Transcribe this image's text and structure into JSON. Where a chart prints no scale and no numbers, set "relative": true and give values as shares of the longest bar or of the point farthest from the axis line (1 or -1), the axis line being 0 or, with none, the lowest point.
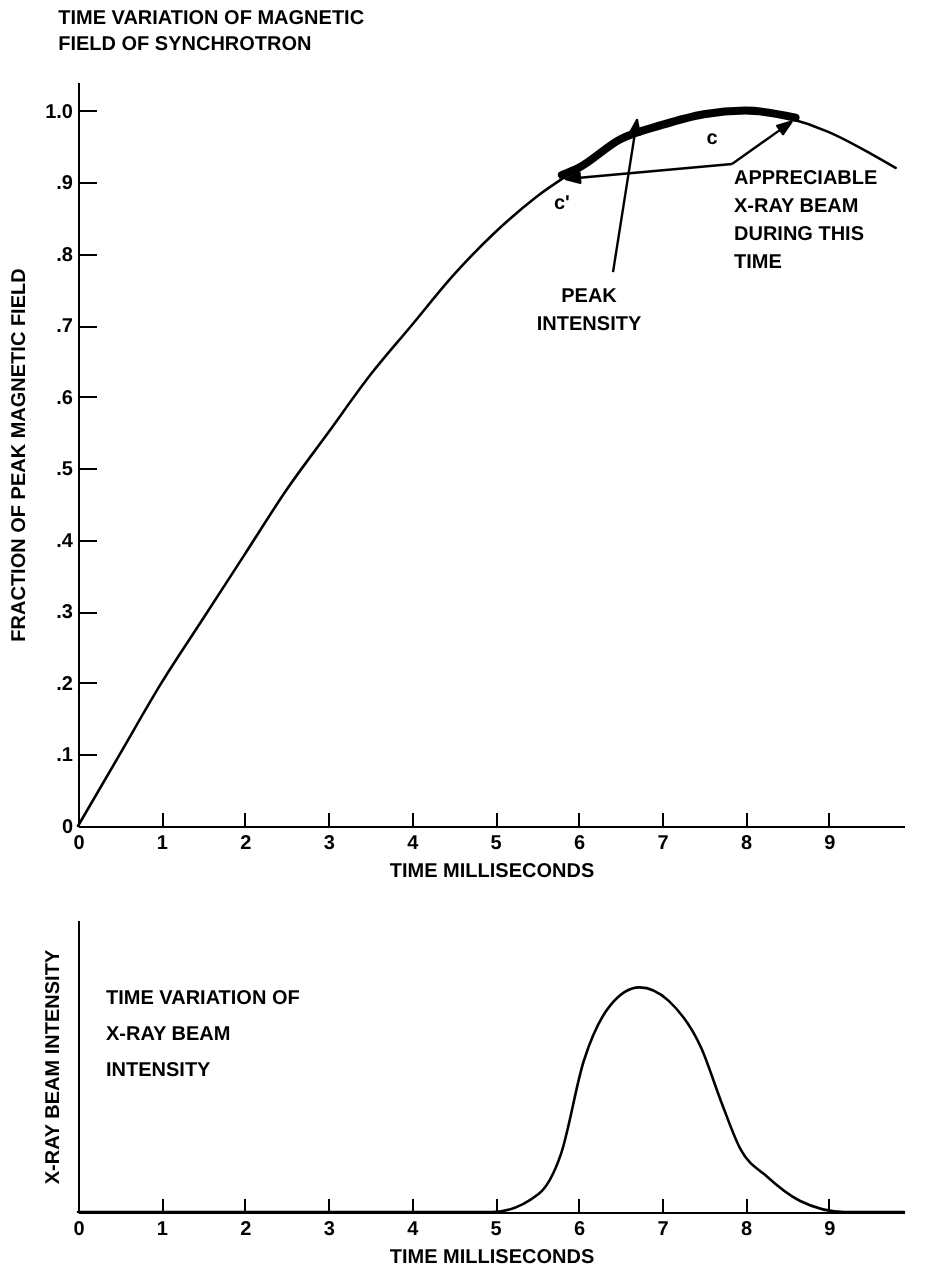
{
  "chart_data": [
    {
      "type": "line",
      "title": "TIME VARIATION OF MAGNETIC FIELD OF SYNCHROTRON",
      "xlabel": "TIME MILLISECONDS",
      "ylabel": "FRACTION OF PEAK MAGNETIC FIELD",
      "x": [
        0,
        0.5,
        1,
        1.5,
        2,
        2.5,
        3,
        3.5,
        4,
        4.5,
        5,
        5.5,
        6,
        6.5,
        7,
        7.5,
        8,
        8.5,
        9,
        9.5,
        9.8
      ],
      "series": [
        {
          "color": "#000000",
          "values": [
            0,
            0.1,
            0.2,
            0.29,
            0.38,
            0.47,
            0.55,
            0.63,
            0.7,
            0.77,
            0.83,
            0.88,
            0.92,
            0.96,
            0.98,
            0.995,
            1.0,
            0.99,
            0.97,
            0.94,
            0.92
          ]
        },
        {
          "color": "#000000",
          "x": [
            5.8,
            6,
            6.5,
            7,
            7.5,
            8,
            8.6
          ],
          "values": [
            0.91,
            0.92,
            0.96,
            0.98,
            0.995,
            1.0,
            0.99
          ]
        }
      ],
      "xlim": [
        0,
        9.9
      ],
      "xticks": [
        0,
        1,
        2,
        3,
        4,
        5,
        6,
        7,
        8,
        9
      ],
      "ylim": [
        0,
        1.04
      ],
      "yticks": [
        0,
        {
          "value": 0.1,
          "label": ".1"
        },
        {
          "value": 0.2,
          "label": ".2"
        },
        {
          "value": 0.3,
          "label": ".3"
        },
        {
          "value": 0.4,
          "label": ".4"
        },
        {
          "value": 0.5,
          "label": ".5"
        },
        {
          "value": 0.6,
          "label": ".6"
        },
        {
          "value": 0.7,
          "label": ".7"
        },
        {
          "value": 0.8,
          "label": ".8"
        },
        {
          "value": 0.9,
          "label": ".9"
        },
        {
          "value": 1,
          "label": "1.0"
        }
      ],
      "annotations": [
        {
          "text": "c'",
          "x": 5.8,
          "y": 0.91
        },
        {
          "text": "c",
          "x": 7.6,
          "y": 0.995
        },
        {
          "text": "PEAK INTENSITY",
          "x": 6.7,
          "y": 0.97
        },
        "APPRECIABLE X-RAY BEAM DURING THIS TIME"
      ]
    },
    {
      "type": "line",
      "title": "TIME VARIATION OF X-RAY BEAM INTENSITY",
      "xlabel": "TIME MILLISECONDS",
      "ylabel": "X-RAY BEAM INTENSITY",
      "relative": true,
      "tick_labels": "x",
      "x": [
        0,
        4.97,
        5.52,
        5.79,
        6.06,
        6.38,
        6.73,
        7.08,
        7.47,
        7.71,
        7.94,
        8.25,
        8.65,
        9.19,
        9.9
      ],
      "series": [
        {
          "color": "#000000",
          "values": [
            0,
            0,
            0.08,
            0.26,
            0.67,
            0.92,
            1,
            0.94,
            0.73,
            0.49,
            0.28,
            0.16,
            0.05,
            0,
            0
          ]
        }
      ],
      "xlim": [
        0,
        9.9
      ],
      "xticks": [
        0,
        1,
        2,
        3,
        4,
        5,
        6,
        7,
        8,
        9
      ]
    }
  ]
}
